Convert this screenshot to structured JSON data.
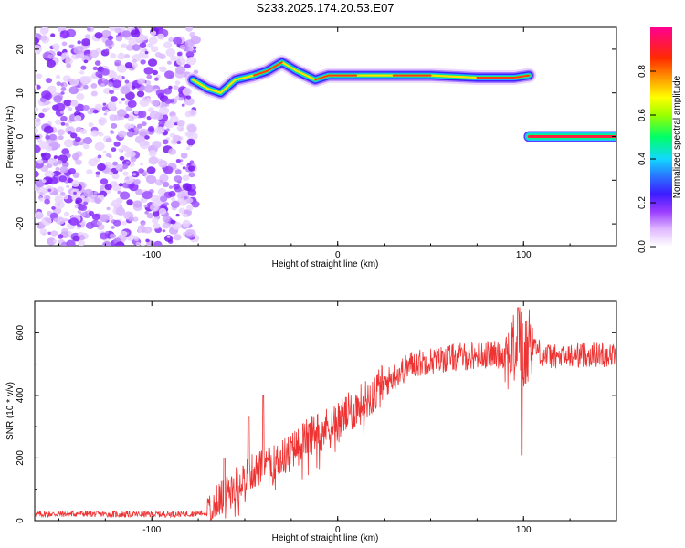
{
  "title": "S233.2025.174.20.53.E07",
  "chart_data": [
    {
      "type": "heatmap",
      "xlabel": "Height of straight line (km)",
      "ylabel": "Frequency (Hz)",
      "xlim": [
        -163,
        150
      ],
      "ylim": [
        -25,
        25
      ],
      "x_ticks": [
        -100,
        0,
        100
      ],
      "y_ticks": [
        -20,
        -10,
        0,
        10,
        20
      ],
      "colorbar": {
        "label": "Normalized spectral amplitude",
        "ticks": [
          "0.0",
          "0.2",
          "0.4",
          "0.6",
          "0.8"
        ],
        "range": [
          0,
          1
        ]
      },
      "noise_region_x": [
        -163,
        -78
      ],
      "ridge": [
        {
          "x": -78,
          "f": 13
        },
        {
          "x": -70,
          "f": 11
        },
        {
          "x": -63,
          "f": 10
        },
        {
          "x": -55,
          "f": 13
        },
        {
          "x": -45,
          "f": 14
        },
        {
          "x": -38,
          "f": 15
        },
        {
          "x": -30,
          "f": 17
        },
        {
          "x": -22,
          "f": 15
        },
        {
          "x": -12,
          "f": 13
        },
        {
          "x": -5,
          "f": 14
        },
        {
          "x": 10,
          "f": 14
        },
        {
          "x": 30,
          "f": 14
        },
        {
          "x": 50,
          "f": 14
        },
        {
          "x": 75,
          "f": 13.5
        },
        {
          "x": 95,
          "f": 13.5
        },
        {
          "x": 103,
          "f": 14
        }
      ],
      "tone": {
        "x_start": 103,
        "x_end": 150,
        "f": 0
      }
    },
    {
      "type": "line",
      "xlabel": "Height of straight line (km)",
      "ylabel": "SNR (10 * v/v)",
      "xlim": [
        -163,
        150
      ],
      "ylim": [
        0,
        700
      ],
      "x_ticks": [
        -100,
        0,
        100
      ],
      "y_ticks": [
        0,
        200,
        400,
        600
      ],
      "color": "#ee3333",
      "series": [
        {
          "x": [
            -163,
            -140,
            -120,
            -100,
            -80,
            -70,
            -65,
            -60,
            -55,
            -50,
            -45,
            -40,
            -35,
            -30,
            -25,
            -20,
            -15,
            -10,
            -5,
            0,
            10,
            20,
            30,
            40,
            50,
            60,
            70,
            80,
            90,
            95,
            98,
            100,
            103,
            110,
            120,
            130,
            140,
            150
          ],
          "values": [
            20,
            22,
            20,
            20,
            22,
            25,
            60,
            90,
            120,
            140,
            160,
            170,
            180,
            200,
            220,
            250,
            270,
            290,
            300,
            320,
            360,
            410,
            460,
            500,
            510,
            520,
            525,
            530,
            530,
            540,
            600,
            500,
            580,
            530,
            520,
            530,
            530,
            530
          ]
        }
      ],
      "annotations": [
        {
          "x": -61,
          "peak": 200
        },
        {
          "x": -48,
          "peak": 330
        },
        {
          "x": -40,
          "peak": 400
        },
        {
          "x": 97,
          "peak": 680
        },
        {
          "x": 99,
          "dip": 210
        }
      ]
    }
  ]
}
